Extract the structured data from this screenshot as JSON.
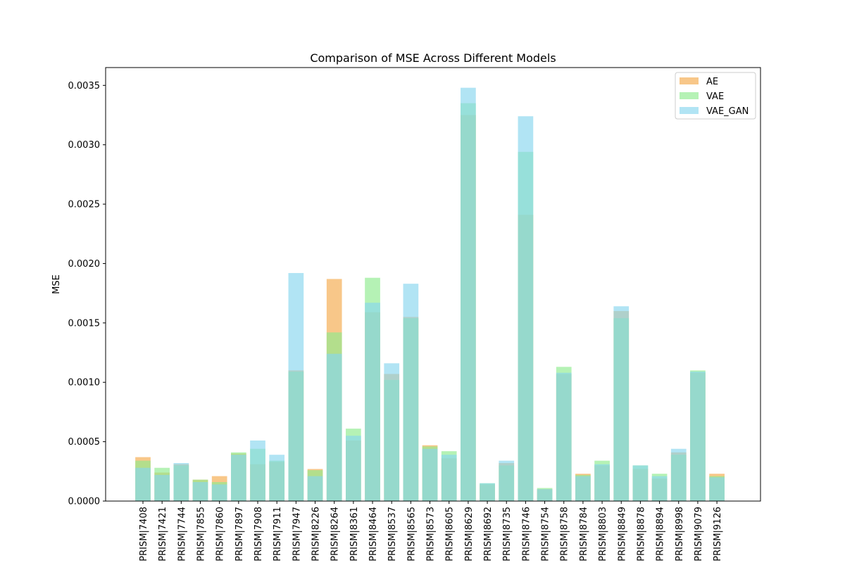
{
  "chart_data": {
    "type": "bar",
    "title": "Comparison of MSE Across Different Models",
    "xlabel": "",
    "ylabel": "MSE",
    "ylim": [
      0,
      0.00365
    ],
    "yticks": [
      "0.0000",
      "0.0005",
      "0.0010",
      "0.0015",
      "0.0020",
      "0.0025",
      "0.0030",
      "0.0035"
    ],
    "ytick_values": [
      0,
      0.0005,
      0.001,
      0.0015,
      0.002,
      0.0025,
      0.003,
      0.0035
    ],
    "legend_position": "top-right",
    "categories": [
      "PRISM|7408",
      "PRISM|7421",
      "PRISM|7744",
      "PRISM|7855",
      "PRISM|7860",
      "PRISM|7897",
      "PRISM|7908",
      "PRISM|7911",
      "PRISM|7947",
      "PRISM|8226",
      "PRISM|8264",
      "PRISM|8361",
      "PRISM|8464",
      "PRISM|8537",
      "PRISM|8565",
      "PRISM|8573",
      "PRISM|8605",
      "PRISM|8629",
      "PRISM|8692",
      "PRISM|8735",
      "PRISM|8746",
      "PRISM|8754",
      "PRISM|8758",
      "PRISM|8784",
      "PRISM|8803",
      "PRISM|8849",
      "PRISM|8878",
      "PRISM|8894",
      "PRISM|8998",
      "PRISM|9079",
      "PRISM|9126"
    ],
    "series": [
      {
        "name": "AE",
        "color": "#f5a94a",
        "values": [
          0.00037,
          0.00024,
          0.00031,
          0.00018,
          0.00021,
          0.0004,
          0.00031,
          0.00033,
          0.0011,
          0.00027,
          0.00187,
          0.00051,
          0.00159,
          0.00107,
          0.00155,
          0.00047,
          0.00036,
          0.00325,
          0.00014,
          0.00032,
          0.00241,
          0.0001,
          0.00107,
          0.00023,
          0.0003,
          0.0016,
          0.00027,
          0.00019,
          0.00041,
          0.00108,
          0.00023
        ]
      },
      {
        "name": "VAE",
        "color": "#8eeb8e",
        "values": [
          0.00034,
          0.00028,
          0.0003,
          0.00018,
          0.00016,
          0.00041,
          0.00044,
          0.00034,
          0.00109,
          0.00026,
          0.00142,
          0.00061,
          0.00188,
          0.00102,
          0.00154,
          0.00046,
          0.00042,
          0.00335,
          0.00015,
          0.0003,
          0.00294,
          0.00011,
          0.00113,
          0.00022,
          0.00034,
          0.00154,
          0.0003,
          0.00023,
          0.00039,
          0.0011,
          0.00021
        ]
      },
      {
        "name": "VAE_GAN",
        "color": "#87d6ee",
        "values": [
          0.00028,
          0.00022,
          0.00032,
          0.00016,
          0.00014,
          0.00039,
          0.00051,
          0.00039,
          0.00192,
          0.00021,
          0.00124,
          0.00055,
          0.00167,
          0.00116,
          0.00183,
          0.00044,
          0.00039,
          0.00348,
          0.00015,
          0.00034,
          0.00324,
          0.0001,
          0.00108,
          0.00021,
          0.00031,
          0.00164,
          0.0003,
          0.00021,
          0.00044,
          0.00109,
          0.0002
        ]
      }
    ]
  }
}
